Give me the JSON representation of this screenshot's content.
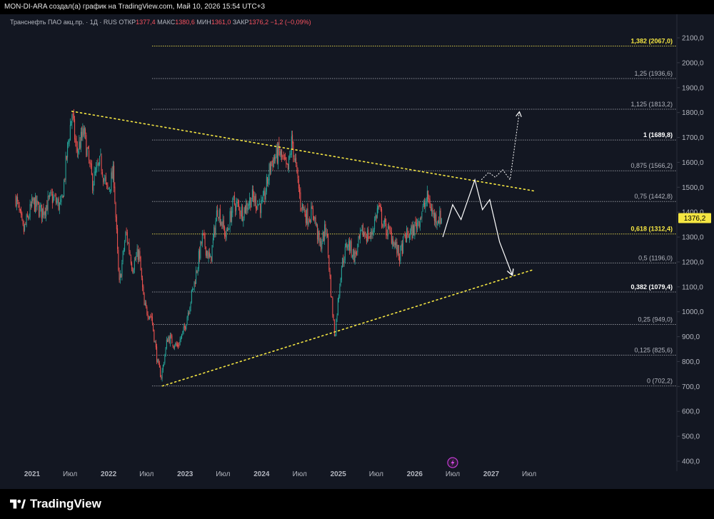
{
  "header": {
    "attribution": "MON-DI-ARA создал(а) график на TradingView.com, Май 10, 2026 15:54 UTC+3"
  },
  "legend": {
    "symbol": "Транснефть ПАО акц.пр. · 1Д · RUS",
    "open_label": "ОТКР",
    "open": "1377,4",
    "high_label": "МАКС",
    "high": "1380,6",
    "low_label": "МИН",
    "low": "1361,0",
    "close_label": "ЗАКР",
    "close": "1376,2",
    "change": "−1,2 (−0,09%)"
  },
  "brand": {
    "name": "TradingView"
  },
  "colors": {
    "background": "#131722",
    "up": "#26a69a",
    "down": "#ef5350",
    "trendline": "#f5e642",
    "fib_line": "#9598a1",
    "price_tag": "#f5e642"
  },
  "chart_data": {
    "type": "candlestick",
    "title": "Транснефть ПАО акц.пр. · 1Д · RUS",
    "y_axis": {
      "min": 400,
      "max": 2100,
      "ticks": [
        "400,0",
        "500,0",
        "600,0",
        "700,0",
        "800,0",
        "900,0",
        "1000,0",
        "1100,0",
        "1200,0",
        "1300,0",
        "1400,0",
        "1500,0",
        "1600,0",
        "1700,0",
        "1800,0",
        "1900,0",
        "2000,0",
        "2100,0"
      ]
    },
    "x_axis": {
      "ticks": [
        {
          "label": "2021",
          "date": "2021-01-01"
        },
        {
          "label": "Июл",
          "date": "2021-07-01"
        },
        {
          "label": "2022",
          "date": "2022-01-01"
        },
        {
          "label": "Июл",
          "date": "2022-07-01"
        },
        {
          "label": "2023",
          "date": "2023-01-01"
        },
        {
          "label": "Июл",
          "date": "2023-07-01"
        },
        {
          "label": "2024",
          "date": "2024-01-01"
        },
        {
          "label": "Июл",
          "date": "2024-07-01"
        },
        {
          "label": "2025",
          "date": "2025-01-01"
        },
        {
          "label": "Июл",
          "date": "2025-07-01"
        },
        {
          "label": "2026",
          "date": "2026-01-01"
        },
        {
          "label": "Июл",
          "date": "2026-07-01"
        },
        {
          "label": "2027",
          "date": "2027-01-01"
        },
        {
          "label": "Июл",
          "date": "2027-07-01"
        }
      ]
    },
    "last_price": {
      "value": 1376.2,
      "label": "1376,2"
    },
    "price_path": [
      [
        "2020-10-15",
        1460
      ],
      [
        "2020-11-20",
        1320
      ],
      [
        "2021-01-05",
        1440
      ],
      [
        "2021-02-15",
        1400
      ],
      [
        "2021-04-05",
        1460
      ],
      [
        "2021-05-20",
        1420
      ],
      [
        "2021-06-25",
        1700
      ],
      [
        "2021-07-10",
        1800
      ],
      [
        "2021-08-01",
        1640
      ],
      [
        "2021-09-05",
        1720
      ],
      [
        "2021-10-15",
        1520
      ],
      [
        "2021-11-25",
        1600
      ],
      [
        "2021-12-25",
        1480
      ],
      [
        "2022-01-25",
        1560
      ],
      [
        "2022-02-20",
        1100
      ],
      [
        "2022-03-25",
        1320
      ],
      [
        "2022-04-25",
        1180
      ],
      [
        "2022-05-25",
        1240
      ],
      [
        "2022-06-20",
        1020
      ],
      [
        "2022-07-25",
        980
      ],
      [
        "2022-08-25",
        780
      ],
      [
        "2022-09-10",
        740
      ],
      [
        "2022-10-10",
        900
      ],
      [
        "2022-11-25",
        860
      ],
      [
        "2022-12-25",
        920
      ],
      [
        "2023-02-15",
        1120
      ],
      [
        "2023-03-25",
        1300
      ],
      [
        "2023-05-01",
        1200
      ],
      [
        "2023-06-05",
        1420
      ],
      [
        "2023-07-15",
        1300
      ],
      [
        "2023-08-20",
        1440
      ],
      [
        "2023-10-01",
        1400
      ],
      [
        "2023-11-15",
        1460
      ],
      [
        "2024-01-05",
        1420
      ],
      [
        "2024-02-15",
        1600
      ],
      [
        "2024-03-25",
        1640
      ],
      [
        "2024-05-05",
        1560
      ],
      [
        "2024-05-25",
        1690
      ],
      [
        "2024-07-05",
        1440
      ],
      [
        "2024-08-05",
        1380
      ],
      [
        "2024-09-05",
        1400
      ],
      [
        "2024-10-05",
        1260
      ],
      [
        "2024-11-05",
        1340
      ],
      [
        "2024-11-25",
        1100
      ],
      [
        "2024-12-15",
        900
      ],
      [
        "2025-01-15",
        1180
      ],
      [
        "2025-02-15",
        1280
      ],
      [
        "2025-03-20",
        1220
      ],
      [
        "2025-04-25",
        1320
      ],
      [
        "2025-06-05",
        1300
      ],
      [
        "2025-07-10",
        1420
      ],
      [
        "2025-08-10",
        1340
      ],
      [
        "2025-09-15",
        1300
      ],
      [
        "2025-10-20",
        1220
      ],
      [
        "2025-11-15",
        1300
      ],
      [
        "2025-12-20",
        1320
      ],
      [
        "2026-01-25",
        1380
      ],
      [
        "2026-03-05",
        1460
      ],
      [
        "2026-04-01",
        1380
      ],
      [
        "2026-05-10",
        1376.2
      ]
    ],
    "trendlines": [
      {
        "from": [
          "2021-07-10",
          1805
        ],
        "to": [
          "2027-07-25",
          1485
        ]
      },
      {
        "from": [
          "2022-09-15",
          702
        ],
        "to": [
          "2027-07-25",
          1170
        ]
      }
    ],
    "fib_levels": [
      {
        "ratio": "0",
        "price": 702.2,
        "label": "0 (702,2)"
      },
      {
        "ratio": "0.125",
        "price": 825.6,
        "label": "0,125 (825,6)"
      },
      {
        "ratio": "0.25",
        "price": 949.0,
        "label": "0,25 (949,0)"
      },
      {
        "ratio": "0.382",
        "price": 1079.4,
        "label": "0,382 (1079,4)"
      },
      {
        "ratio": "0.5",
        "price": 1196.0,
        "label": "0,5 (1196,0)"
      },
      {
        "ratio": "0.618",
        "price": 1312.4,
        "label": "0,618 (1312,4)"
      },
      {
        "ratio": "0.75",
        "price": 1442.8,
        "label": "0,75 (1442,8)"
      },
      {
        "ratio": "0.875",
        "price": 1566.2,
        "label": "0,875 (1566,2)"
      },
      {
        "ratio": "1",
        "price": 1689.8,
        "label": "1 (1689,8)"
      },
      {
        "ratio": "1.125",
        "price": 1813.2,
        "label": "1,125 (1813,2)"
      },
      {
        "ratio": "1.25",
        "price": 1936.6,
        "label": "1,25 (1936,6)"
      },
      {
        "ratio": "1.382",
        "price": 2067.0,
        "label": "1,382 (2067,0)"
      }
    ],
    "projection_main": [
      [
        "2026-05-15",
        1300
      ],
      [
        "2026-07-01",
        1430
      ],
      [
        "2026-08-10",
        1370
      ],
      [
        "2026-10-15",
        1530
      ],
      [
        "2026-11-20",
        1410
      ],
      [
        "2026-12-25",
        1450
      ],
      [
        "2027-02-10",
        1280
      ],
      [
        "2027-04-10",
        1150
      ]
    ],
    "projection_alt": [
      [
        "2026-11-15",
        1530
      ],
      [
        "2026-12-20",
        1560
      ],
      [
        "2027-01-20",
        1540
      ],
      [
        "2027-02-25",
        1570
      ],
      [
        "2027-04-01",
        1530
      ],
      [
        "2027-05-15",
        1800
      ]
    ],
    "event_marker": {
      "date": "2026-07-01",
      "icon": "lightning-icon"
    }
  }
}
